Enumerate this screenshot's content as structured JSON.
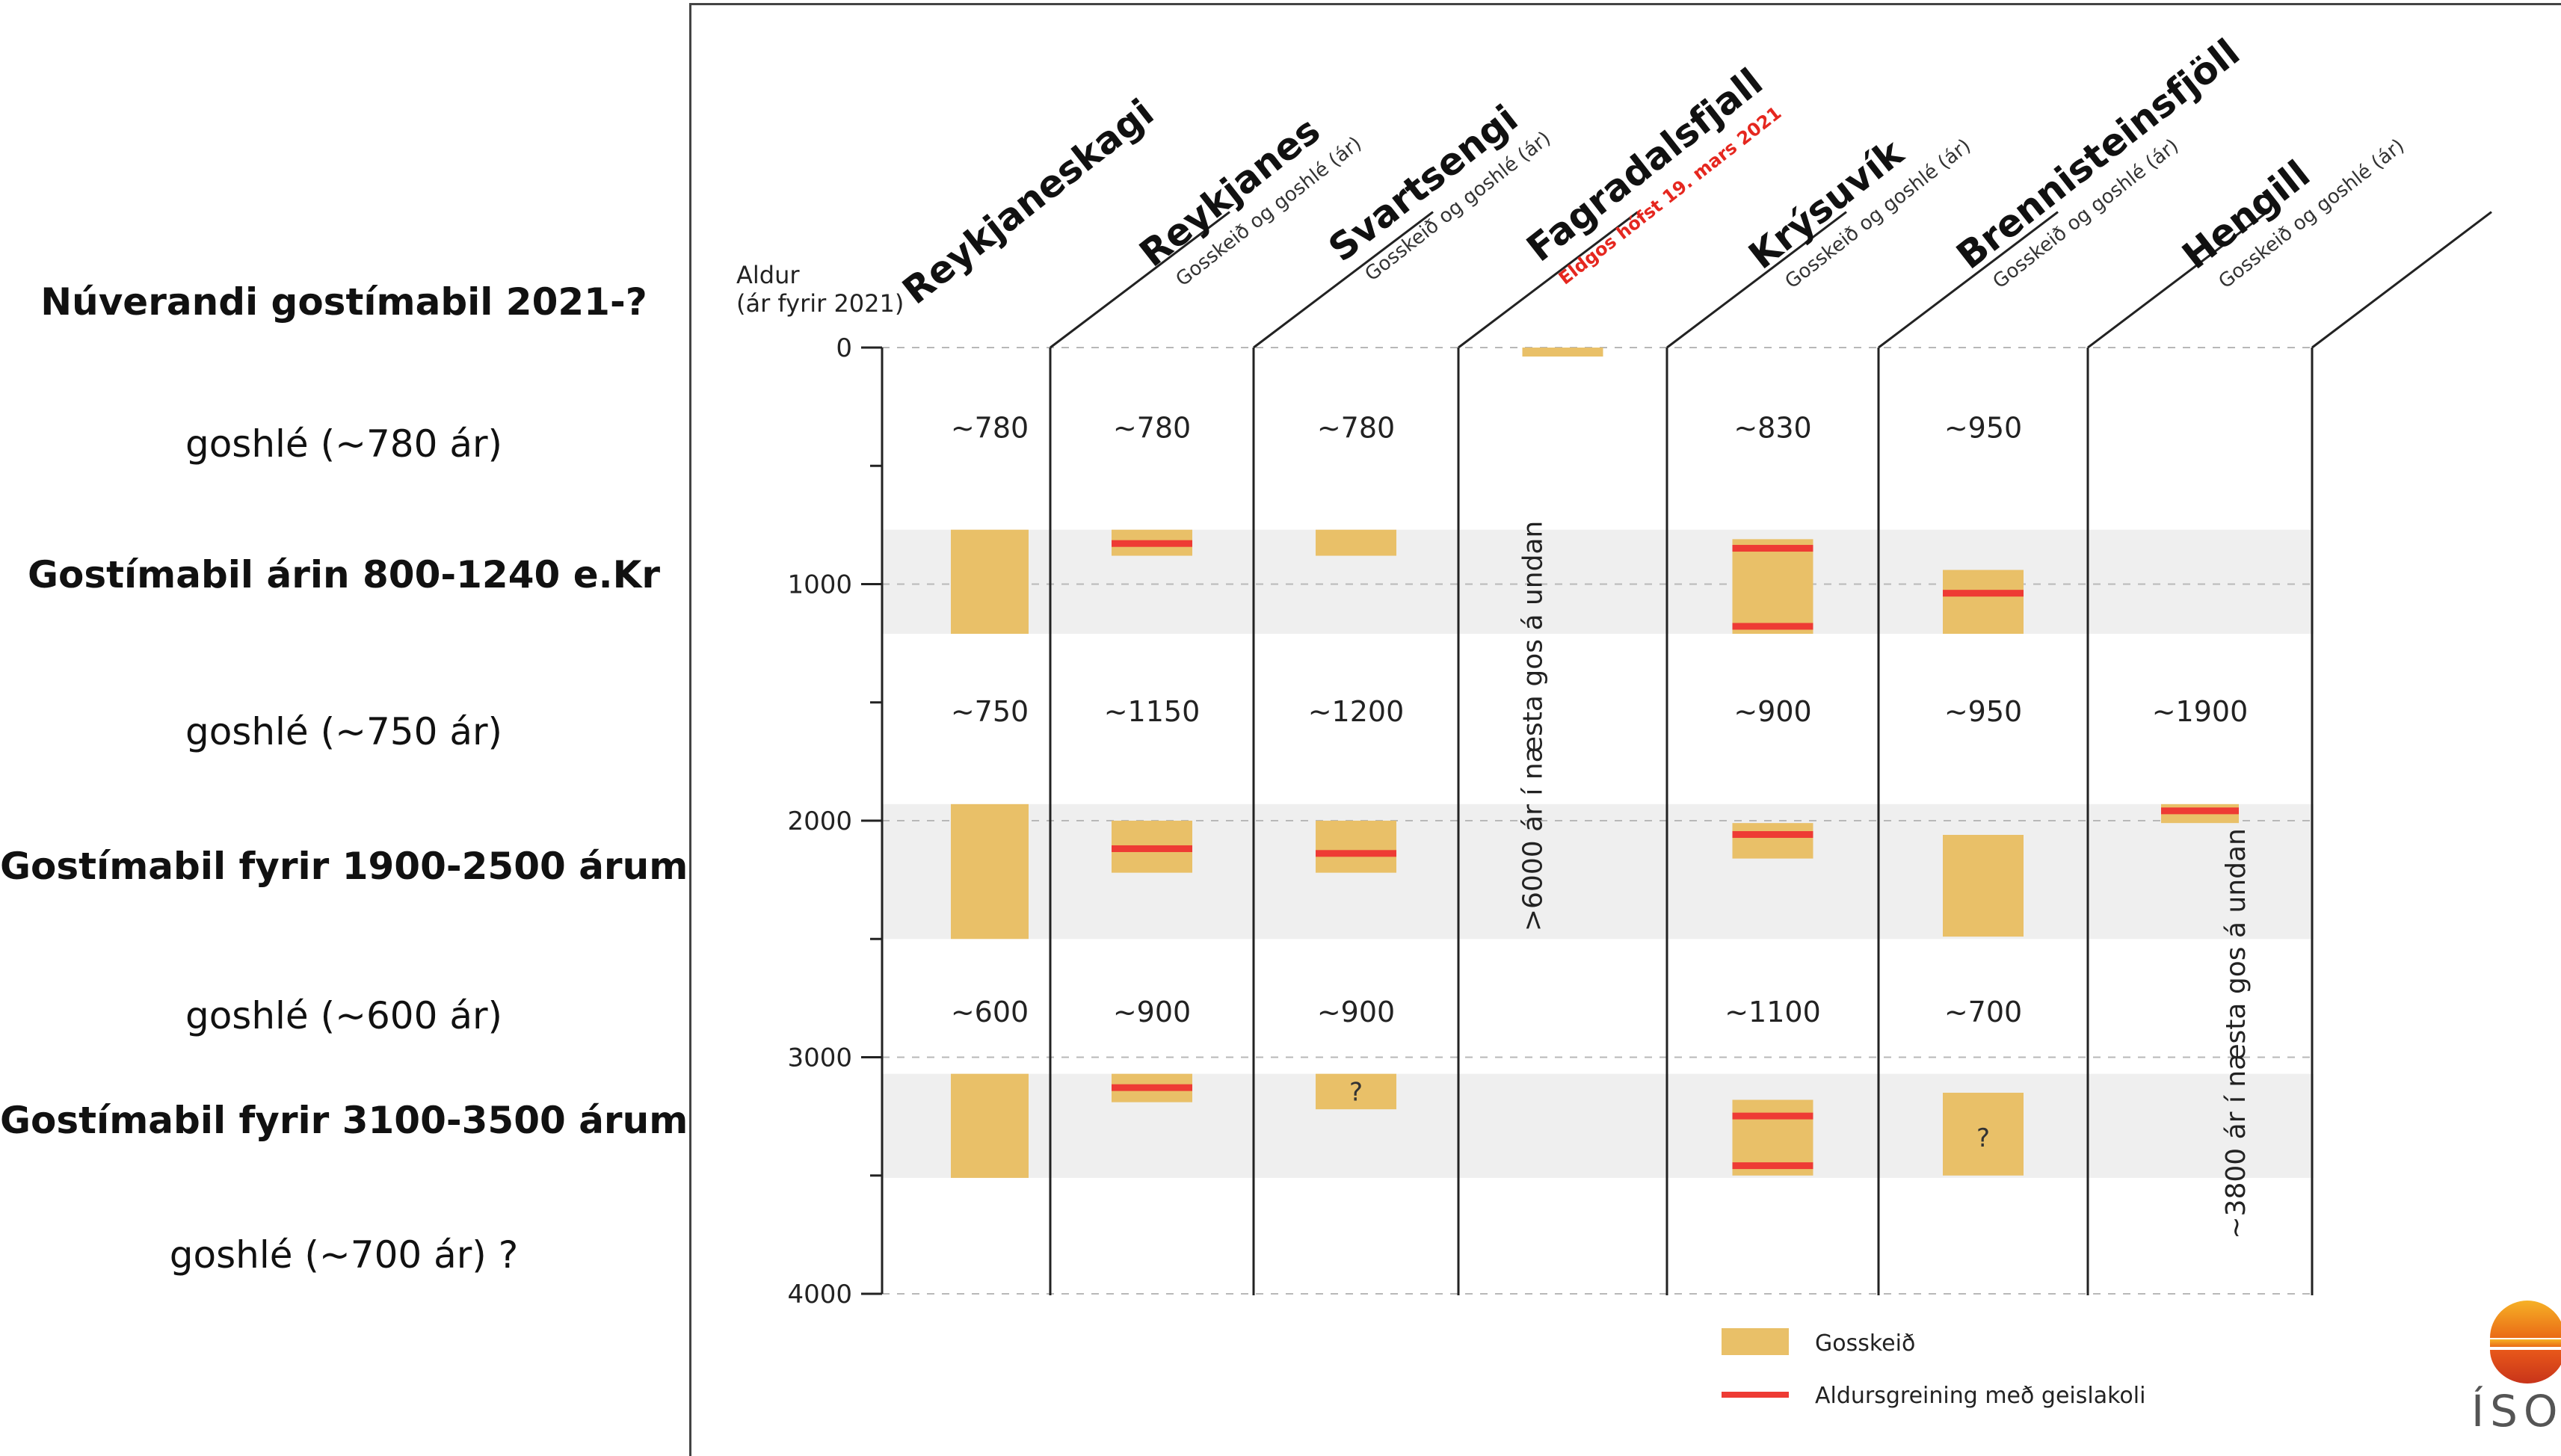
{
  "left_panel": {
    "phases": [
      {
        "text": "Núverandi gostímabil 2021-?",
        "style": "bold"
      },
      {
        "text": "goshlé (~780 ár)",
        "style": "normal"
      },
      {
        "text": "Gostímabil árin 800-1240 e.Kr",
        "style": "bold"
      },
      {
        "text": "goshlé (~750 ár)",
        "style": "normal"
      },
      {
        "text": "Gostímabil fyrir 1900-2500 árum",
        "style": "bold"
      },
      {
        "text": "goshlé (~600 ár)",
        "style": "normal"
      },
      {
        "text": "Gostímabil fyrir 3100-3500 árum",
        "style": "bold"
      },
      {
        "text": "goshlé (~700 ár) ?",
        "style": "normal"
      }
    ]
  },
  "chart_data": {
    "type": "timeline",
    "ylabel_line1": "Aldur",
    "ylabel_line2": "(ár fyrir 2021)",
    "yticks": [
      0,
      1000,
      2000,
      3000,
      4000
    ],
    "ylim": [
      0,
      4000
    ],
    "period_bands": [
      [
        770,
        1210
      ],
      [
        1930,
        2500
      ],
      [
        3070,
        3510
      ]
    ],
    "columns": [
      {
        "name": "Reykjaneskagi",
        "subtitle": "",
        "gaps": [
          "~780",
          "~750",
          "~600"
        ],
        "eruptions": [
          [
            770,
            1210
          ],
          [
            1930,
            2500
          ],
          [
            3070,
            3510
          ]
        ],
        "dates": [],
        "question_marks": []
      },
      {
        "name": "Reykjanes",
        "subtitle": "Gosskeið og goshlé (ár)",
        "gaps": [
          "~780",
          "~1150",
          "~900"
        ],
        "eruptions": [
          [
            770,
            880
          ],
          [
            2000,
            2220
          ],
          [
            3070,
            3190
          ]
        ],
        "dates": [
          830,
          2120,
          3130
        ],
        "question_marks": []
      },
      {
        "name": "Svartsengi",
        "subtitle": "Gosskeið og goshlé (ár)",
        "gaps": [
          "~780",
          "~1200",
          "~900"
        ],
        "eruptions": [
          [
            770,
            880
          ],
          [
            2000,
            2220
          ],
          [
            3070,
            3220
          ]
        ],
        "dates": [
          2140
        ],
        "question_marks": [
          3145
        ]
      },
      {
        "name": "Fagradalsfjall",
        "subtitle": "Eldgos hófst 19. mars 2021",
        "gaps": [],
        "eruptions": [
          [
            0,
            20
          ]
        ],
        "dates": [],
        "question_marks": [],
        "note": ">6000 ár í næsta gos á undan"
      },
      {
        "name": "Krýsuvík",
        "subtitle": "Gosskeið og goshlé (ár)",
        "gaps": [
          "~830",
          "~900",
          "~1100"
        ],
        "eruptions": [
          [
            810,
            1210
          ],
          [
            2010,
            2160
          ],
          [
            3180,
            3500
          ]
        ],
        "dates": [
          850,
          1180,
          2060,
          3250,
          3460
        ],
        "question_marks": []
      },
      {
        "name": "Brennisteinsfjöll",
        "subtitle": "Gosskeið og goshlé (ár)",
        "gaps": [
          "~950",
          "~950",
          "~700"
        ],
        "eruptions": [
          [
            940,
            1210
          ],
          [
            2060,
            2490
          ],
          [
            3150,
            3500
          ]
        ],
        "dates": [
          1040
        ],
        "question_marks": [
          3340
        ]
      },
      {
        "name": "Hengill",
        "subtitle": "Gosskeið og goshlé (ár)",
        "gaps": [
          "",
          "~1900",
          ""
        ],
        "eruptions": [
          [
            1930,
            2010
          ]
        ],
        "dates": [
          1960
        ],
        "question_marks": [],
        "note": "~3800 ár í næsta gos á undan"
      }
    ],
    "legend": [
      {
        "label": "Gosskeið",
        "kind": "box",
        "color": "#e9c068"
      },
      {
        "label": "Aldursgreining með geislakoli",
        "kind": "line",
        "color": "#ee3b34"
      }
    ],
    "colors": {
      "eruption": "#e9c068",
      "dating": "#ee3b34",
      "band": "#efefef",
      "subtitle_red": "#e5271f",
      "divider": "#222222"
    }
  },
  "logo": {
    "text": "ÍSOR",
    "icon": "isor-sun-logo"
  }
}
